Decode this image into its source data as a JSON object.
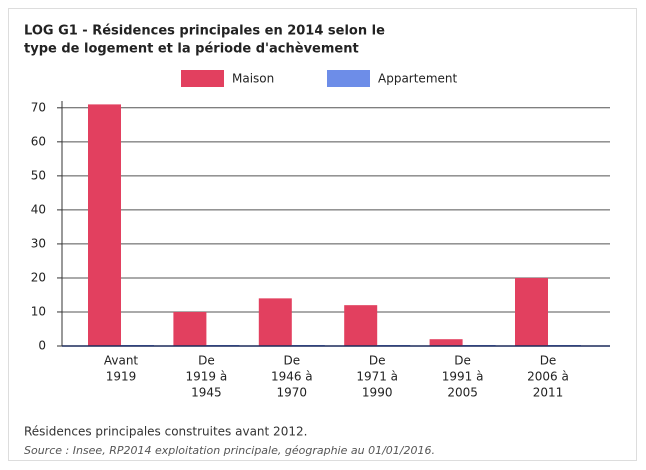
{
  "chart_data": {
    "type": "bar",
    "title": [
      "LOG G1 - Résidences principales en 2014 selon le",
      "type de logement et la période d'achèvement"
    ],
    "categories": [
      [
        "Avant",
        "1919"
      ],
      [
        "De",
        "1919 à",
        "1945"
      ],
      [
        "De",
        "1946 à",
        "1970"
      ],
      [
        "De",
        "1971 à",
        "1990"
      ],
      [
        "De",
        "1991 à",
        "2005"
      ],
      [
        "De",
        "2006 à",
        "2011"
      ]
    ],
    "series": [
      {
        "name": "Maison",
        "color": "#e2405f",
        "values": [
          71,
          10,
          14,
          12,
          2,
          20
        ]
      },
      {
        "name": "Appartement",
        "color": "#6d8de8",
        "values": [
          0,
          0,
          0,
          0,
          0,
          0
        ]
      }
    ],
    "ylim": [
      0,
      72
    ],
    "yticks": [
      0,
      10,
      20,
      30,
      40,
      50,
      60,
      70
    ],
    "grid": true
  },
  "notes": [
    "Résidences principales construites avant 2012.",
    "Source : Insee, RP2014 exploitation principale, géographie au 01/01/2016."
  ]
}
